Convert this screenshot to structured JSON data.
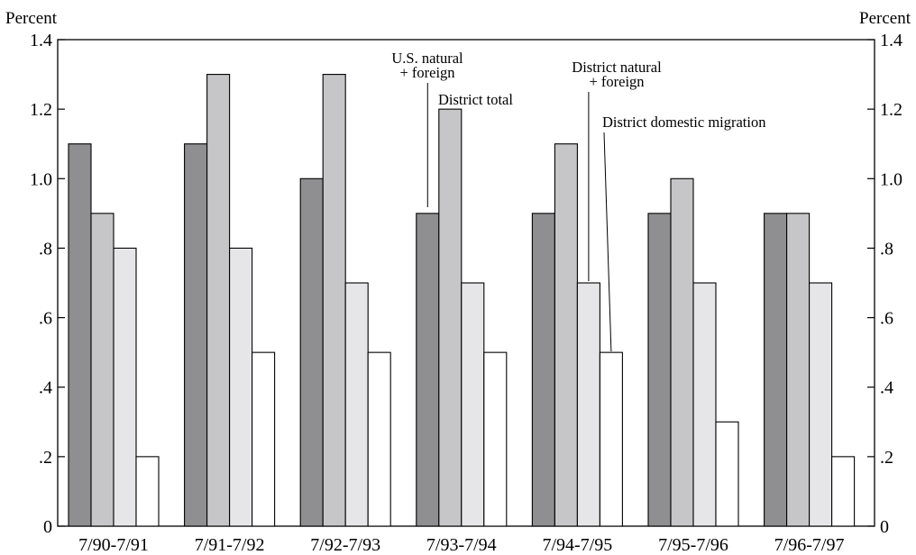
{
  "chart_data": {
    "type": "bar",
    "ylabel_left": "Percent",
    "ylabel_right": "Percent",
    "ylim": [
      0,
      1.4
    ],
    "yticks": [
      {
        "value": 0,
        "label": "0"
      },
      {
        "value": 0.2,
        "label": ".2"
      },
      {
        "value": 0.4,
        "label": ".4"
      },
      {
        "value": 0.6,
        "label": ".6"
      },
      {
        "value": 0.8,
        "label": ".8"
      },
      {
        "value": 1.0,
        "label": "1.0"
      },
      {
        "value": 1.2,
        "label": "1.2"
      },
      {
        "value": 1.4,
        "label": "1.4"
      }
    ],
    "categories": [
      "7/90-7/91",
      "7/91-7/92",
      "7/92-7/93",
      "7/93-7/94",
      "7/94-7/95",
      "7/95-7/96",
      "7/96-7/97"
    ],
    "series": [
      {
        "name": "U.S. natural + foreign",
        "color": "#8f8f92",
        "values": [
          1.1,
          1.1,
          1.0,
          0.9,
          0.9,
          0.9,
          0.9
        ]
      },
      {
        "name": "District total",
        "color": "#c6c6c8",
        "values": [
          0.9,
          1.3,
          1.3,
          1.2,
          1.1,
          1.0,
          0.9
        ]
      },
      {
        "name": "District natural + foreign",
        "color": "#e6e6e8",
        "values": [
          0.8,
          0.8,
          0.7,
          0.7,
          0.7,
          0.7,
          0.7
        ]
      },
      {
        "name": "District domestic migration",
        "color": "#ffffff",
        "values": [
          0.2,
          0.5,
          0.5,
          0.5,
          0.5,
          0.3,
          0.2
        ]
      }
    ],
    "annotations": [
      {
        "lines": [
          "U.S. natural",
          "+ foreign"
        ],
        "series": 0,
        "category": 3
      },
      {
        "lines": [
          "District total"
        ],
        "series": 1,
        "category": 3
      },
      {
        "lines": [
          "District natural",
          "+ foreign"
        ],
        "series": 2,
        "category": 4
      },
      {
        "lines": [
          "District domestic migration"
        ],
        "series": 3,
        "category": 4
      }
    ],
    "grid": false,
    "legend": "none"
  }
}
